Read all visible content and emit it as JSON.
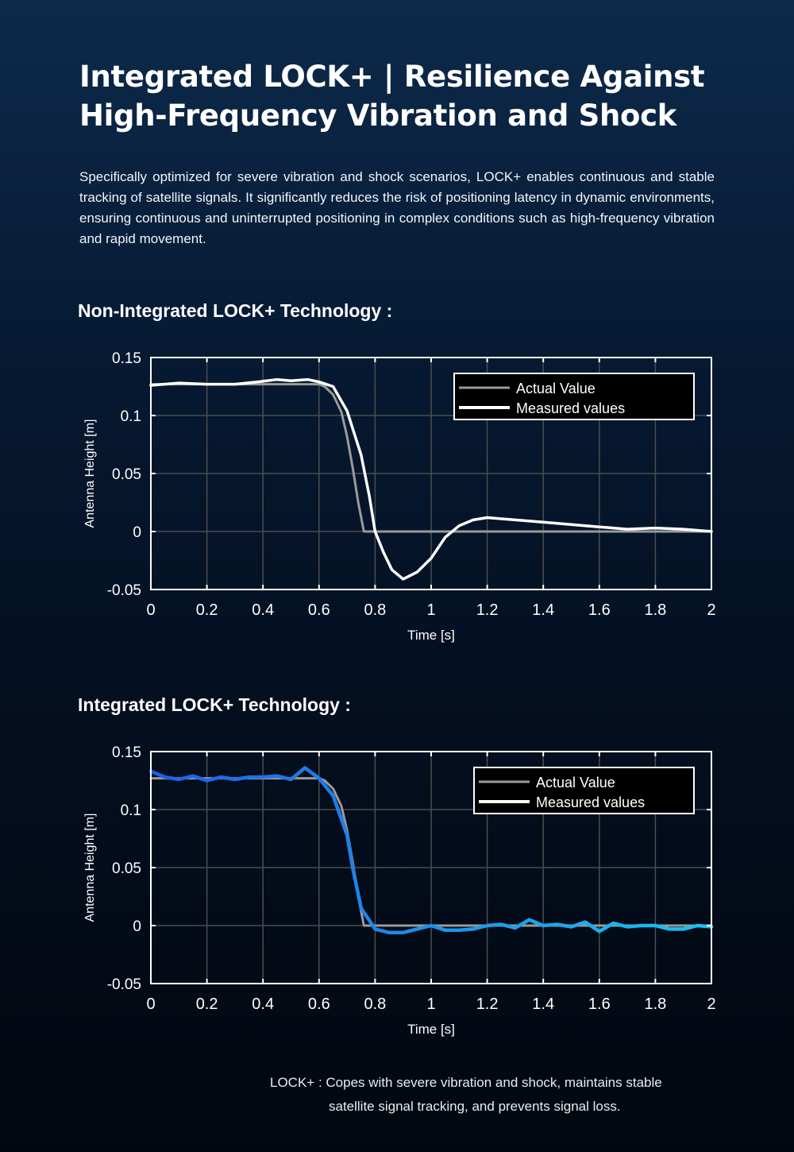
{
  "header": {
    "title_line1": "Integrated LOCK+ | Resilience Against",
    "title_line2": "High-Frequency Vibration and Shock",
    "description": "Specifically optimized for severe vibration and shock scenarios, LOCK+ enables continuous and stable tracking of satellite signals. It significantly reduces the risk of positioning latency in dynamic environments, ensuring continuous and uninterrupted positioning in complex conditions such as high-frequency vibration and rapid movement."
  },
  "sections": [
    {
      "label": "Non-Integrated LOCK+ Technology :"
    },
    {
      "label": "Integrated LOCK+ Technology :"
    }
  ],
  "footnote": {
    "line1": "LOCK+ : Copes with severe vibration and shock, maintains stable",
    "line2": "satellite signal tracking, and prevents signal loss."
  },
  "colors": {
    "actual": "#9a9a9a",
    "measured_non_integrated": "#ffffff",
    "measured_integrated_start": "#1f5ee6",
    "measured_integrated_end": "#19c3f0",
    "grid": "#4d4d4d",
    "frame": "#ffffff"
  },
  "chart_data": [
    {
      "type": "line",
      "xlabel": "Time [s]",
      "ylabel": "Antenna Height [m]",
      "xlim": [
        0,
        2
      ],
      "ylim": [
        -0.05,
        0.15
      ],
      "xticks": [
        "0",
        "0.2",
        "0.4",
        "0.6",
        "0.8",
        "1",
        "1.2",
        "1.4",
        "1.6",
        "1.8",
        "2"
      ],
      "yticks": [
        "0.15",
        "0.1",
        "0.05",
        "0",
        "-0.05"
      ],
      "grid": true,
      "legend_position": "top-right",
      "series": [
        {
          "name": "Actual Value",
          "x": [
            0,
            0.6,
            0.62,
            0.65,
            0.68,
            0.7,
            0.72,
            0.74,
            0.76,
            2.0
          ],
          "y": [
            0.127,
            0.127,
            0.125,
            0.118,
            0.103,
            0.082,
            0.055,
            0.025,
            0.0,
            0.0
          ]
        },
        {
          "name": "Measured values",
          "x": [
            0,
            0.1,
            0.2,
            0.3,
            0.38,
            0.45,
            0.5,
            0.56,
            0.6,
            0.65,
            0.7,
            0.75,
            0.78,
            0.8,
            0.83,
            0.86,
            0.9,
            0.95,
            1.0,
            1.05,
            1.1,
            1.15,
            1.2,
            1.3,
            1.4,
            1.5,
            1.6,
            1.7,
            1.8,
            1.9,
            2.0
          ],
          "y": [
            0.126,
            0.128,
            0.127,
            0.127,
            0.129,
            0.131,
            0.13,
            0.131,
            0.129,
            0.125,
            0.104,
            0.066,
            0.03,
            0.0,
            -0.018,
            -0.033,
            -0.041,
            -0.035,
            -0.023,
            -0.005,
            0.005,
            0.01,
            0.012,
            0.01,
            0.008,
            0.006,
            0.004,
            0.002,
            0.003,
            0.002,
            0.0
          ]
        }
      ]
    },
    {
      "type": "line",
      "xlabel": "Time [s]",
      "ylabel": "Antenna Height [m]",
      "xlim": [
        0,
        2
      ],
      "ylim": [
        -0.05,
        0.15
      ],
      "xticks": [
        "0",
        "0.2",
        "0.4",
        "0.6",
        "0.8",
        "1",
        "1.2",
        "1.4",
        "1.6",
        "1.8",
        "2"
      ],
      "yticks": [
        "0.15",
        "0.1",
        "0.05",
        "0",
        "-0.05"
      ],
      "grid": true,
      "legend_position": "top-right",
      "series": [
        {
          "name": "Actual Value",
          "x": [
            0,
            0.6,
            0.62,
            0.65,
            0.68,
            0.7,
            0.72,
            0.74,
            0.76,
            2.0
          ],
          "y": [
            0.127,
            0.127,
            0.125,
            0.118,
            0.103,
            0.082,
            0.055,
            0.025,
            0.0,
            0.0
          ]
        },
        {
          "name": "Measured values",
          "x": [
            0,
            0.05,
            0.1,
            0.15,
            0.2,
            0.25,
            0.3,
            0.35,
            0.4,
            0.45,
            0.5,
            0.55,
            0.6,
            0.65,
            0.7,
            0.72,
            0.75,
            0.8,
            0.85,
            0.9,
            0.95,
            1.0,
            1.05,
            1.1,
            1.15,
            1.2,
            1.25,
            1.3,
            1.35,
            1.4,
            1.45,
            1.5,
            1.55,
            1.6,
            1.65,
            1.7,
            1.75,
            1.8,
            1.85,
            1.9,
            1.95,
            2.0
          ],
          "y": [
            0.133,
            0.128,
            0.126,
            0.129,
            0.125,
            0.128,
            0.126,
            0.128,
            0.128,
            0.129,
            0.126,
            0.136,
            0.127,
            0.112,
            0.078,
            0.05,
            0.015,
            -0.003,
            -0.006,
            -0.006,
            -0.003,
            0.0,
            -0.004,
            -0.004,
            -0.003,
            0.0,
            0.001,
            -0.002,
            0.005,
            0.0,
            0.001,
            -0.001,
            0.003,
            -0.005,
            0.002,
            -0.001,
            0.0,
            0.0,
            -0.003,
            -0.003,
            0.0,
            -0.001
          ]
        }
      ]
    }
  ]
}
